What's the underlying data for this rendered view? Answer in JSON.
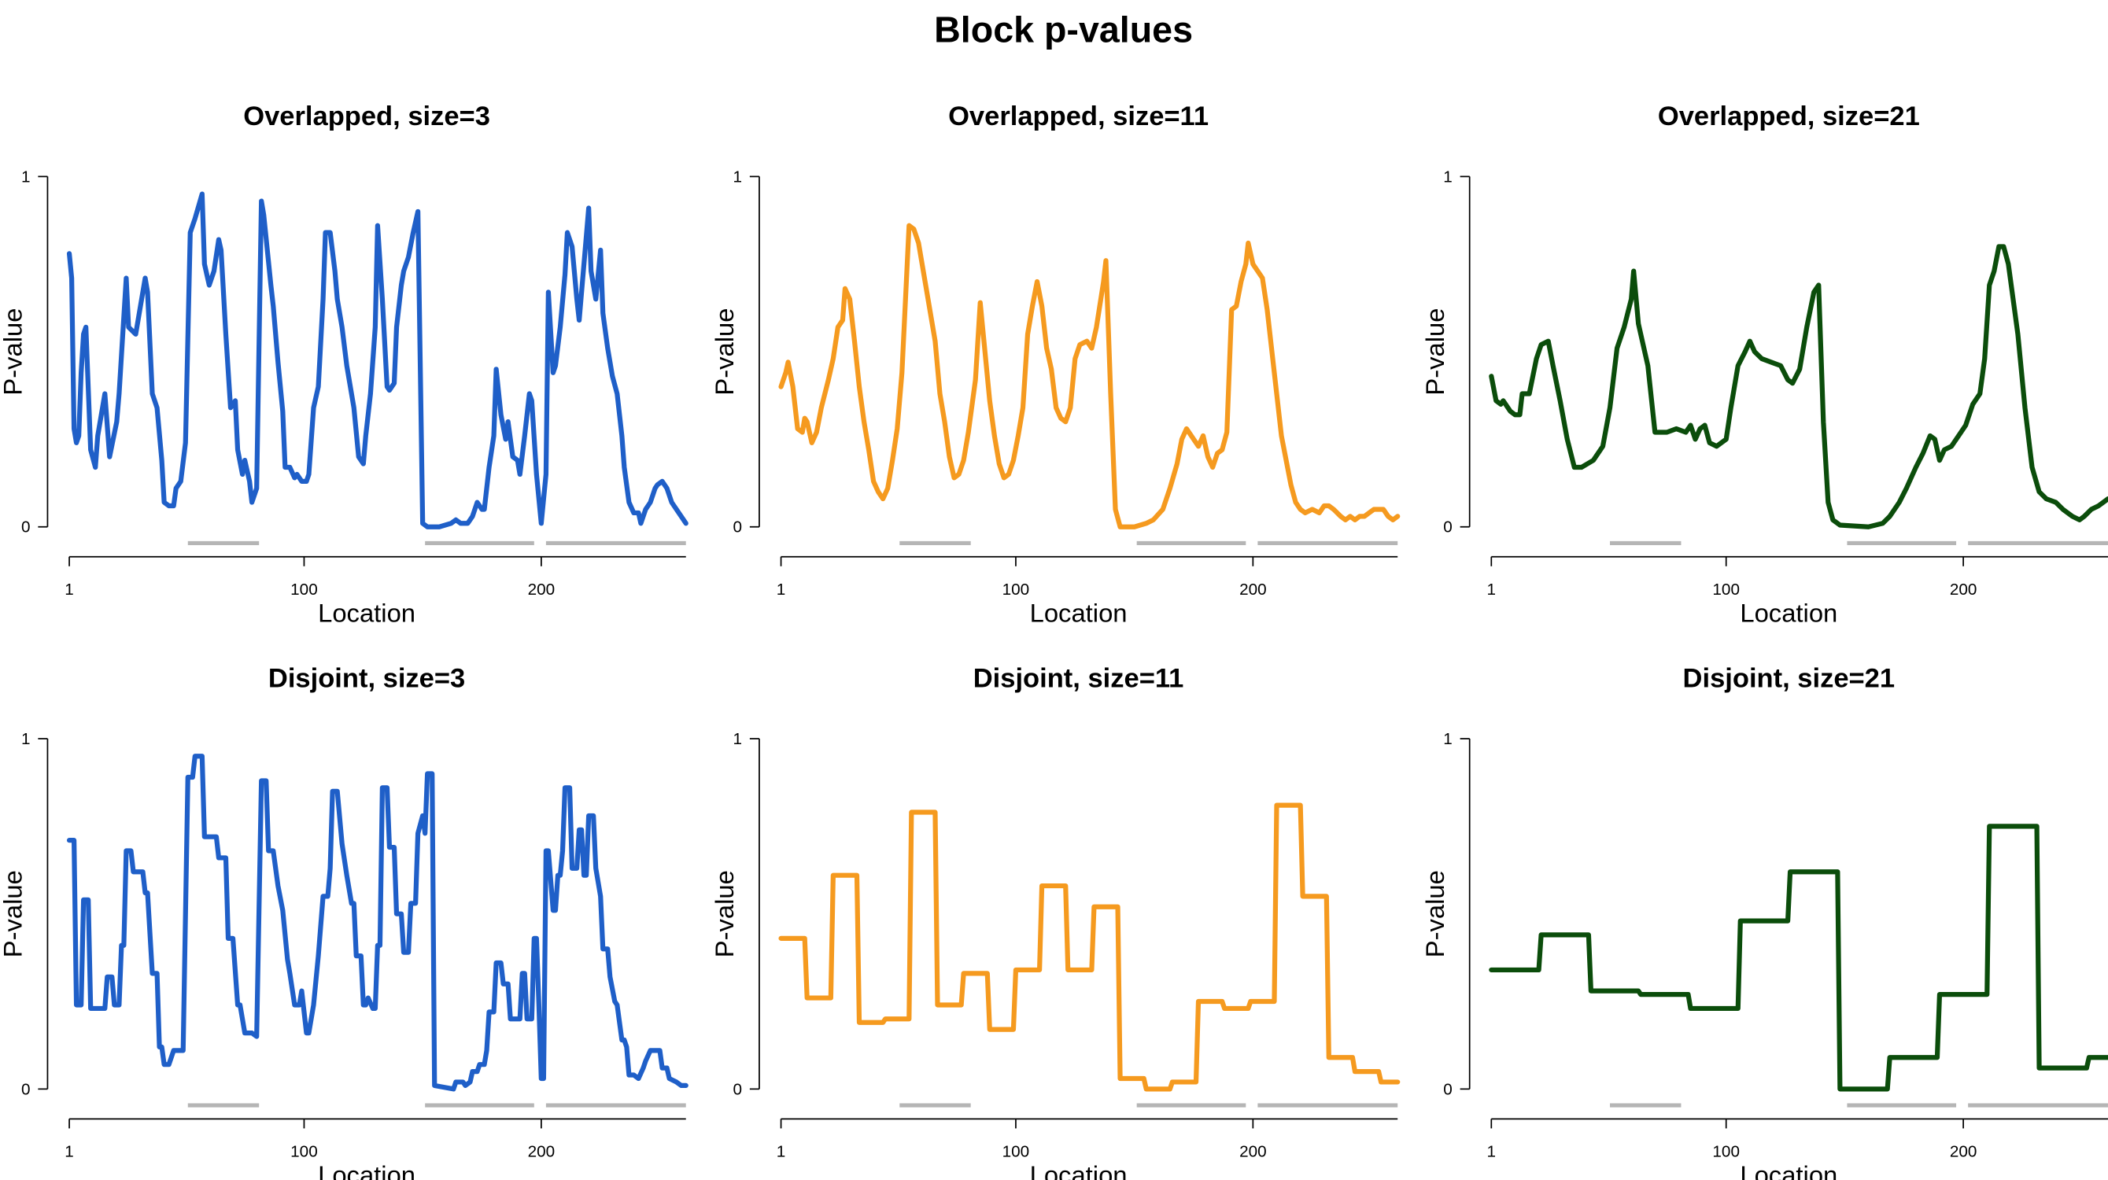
{
  "title": "Block p-values",
  "chart_data": [
    {
      "type": "line",
      "title": "Overlapped, size=3",
      "xlabel": "Location",
      "ylabel": "P-value",
      "color": "#1f5fc8",
      "xlim": [
        1,
        261
      ],
      "ylim": [
        0,
        1
      ],
      "xticks": [
        1,
        100,
        200
      ],
      "yticks": [
        0,
        1
      ],
      "regions": [
        [
          51,
          81
        ],
        [
          151,
          197
        ],
        [
          202,
          261
        ]
      ],
      "region_color": "#b5b5b5",
      "x": [
        1,
        2,
        3,
        4,
        5,
        6,
        7,
        8,
        10,
        12,
        13,
        16,
        18,
        21,
        22,
        25,
        26,
        29,
        30,
        33,
        34,
        36,
        38,
        40,
        41,
        43,
        45,
        46,
        48,
        50,
        52,
        54,
        57,
        58,
        60,
        62,
        64,
        65,
        67,
        69,
        71,
        72,
        74,
        75,
        77,
        78,
        80,
        82,
        83,
        86,
        87,
        89,
        91,
        92,
        94,
        96,
        97,
        99,
        101,
        102,
        104,
        106,
        108,
        109,
        111,
        113,
        114,
        116,
        118,
        119,
        121,
        123,
        125,
        126,
        128,
        130,
        131,
        133,
        135,
        136,
        138,
        139,
        141,
        142,
        144,
        146,
        148,
        150,
        152,
        157,
        162,
        164,
        166,
        169,
        171,
        173,
        175,
        176,
        178,
        180,
        181,
        183,
        185,
        186,
        188,
        190,
        191,
        193,
        195,
        196,
        198,
        200,
        202,
        203,
        205,
        206,
        208,
        210,
        211,
        213,
        215,
        216,
        218,
        220,
        221,
        223,
        225,
        226,
        228,
        230,
        232,
        234,
        235,
        237,
        239,
        241,
        242,
        244,
        246,
        248,
        249,
        251,
        253,
        255,
        257,
        259,
        261
      ],
      "values": [
        0.78,
        0.71,
        0.28,
        0.24,
        0.26,
        0.44,
        0.55,
        0.57,
        0.22,
        0.17,
        0.26,
        0.38,
        0.2,
        0.3,
        0.38,
        0.71,
        0.57,
        0.55,
        0.59,
        0.71,
        0.67,
        0.38,
        0.34,
        0.19,
        0.07,
        0.06,
        0.06,
        0.11,
        0.13,
        0.24,
        0.84,
        0.88,
        0.95,
        0.75,
        0.69,
        0.73,
        0.82,
        0.79,
        0.55,
        0.34,
        0.36,
        0.22,
        0.15,
        0.19,
        0.13,
        0.07,
        0.11,
        0.93,
        0.89,
        0.69,
        0.63,
        0.47,
        0.33,
        0.17,
        0.17,
        0.14,
        0.15,
        0.13,
        0.13,
        0.15,
        0.34,
        0.4,
        0.65,
        0.84,
        0.84,
        0.73,
        0.65,
        0.57,
        0.46,
        0.42,
        0.34,
        0.2,
        0.18,
        0.26,
        0.38,
        0.57,
        0.86,
        0.65,
        0.4,
        0.39,
        0.41,
        0.57,
        0.69,
        0.73,
        0.77,
        0.84,
        0.9,
        0.01,
        0,
        0,
        0.01,
        0.02,
        0.01,
        0.01,
        0.03,
        0.07,
        0.05,
        0.05,
        0.17,
        0.26,
        0.45,
        0.32,
        0.25,
        0.3,
        0.2,
        0.19,
        0.15,
        0.26,
        0.38,
        0.36,
        0.15,
        0.01,
        0.15,
        0.67,
        0.44,
        0.46,
        0.57,
        0.72,
        0.84,
        0.8,
        0.65,
        0.59,
        0.75,
        0.91,
        0.73,
        0.65,
        0.79,
        0.61,
        0.51,
        0.43,
        0.38,
        0.26,
        0.17,
        0.07,
        0.04,
        0.04,
        0.01,
        0.05,
        0.07,
        0.11,
        0.12,
        0.13,
        0.11,
        0.07,
        0.05,
        0.03,
        0.01
      ]
    },
    {
      "type": "line",
      "title": "Overlapped, size=11",
      "xlabel": "Location",
      "ylabel": "P-value",
      "color": "#f59a1f",
      "xlim": [
        1,
        261
      ],
      "ylim": [
        0,
        1
      ],
      "xticks": [
        1,
        100,
        200
      ],
      "yticks": [
        0,
        1
      ],
      "regions": [
        [
          51,
          81
        ],
        [
          151,
          197
        ],
        [
          202,
          261
        ]
      ],
      "region_color": "#b5b5b5",
      "x": [
        1,
        3,
        4,
        6,
        8,
        10,
        11,
        12,
        14,
        16,
        18,
        21,
        23,
        25,
        27,
        28,
        30,
        32,
        34,
        36,
        38,
        40,
        42,
        44,
        46,
        48,
        50,
        52,
        55,
        57,
        59,
        62,
        64,
        66,
        68,
        70,
        72,
        74,
        76,
        78,
        80,
        83,
        85,
        87,
        89,
        91,
        93,
        95,
        97,
        99,
        101,
        103,
        105,
        107,
        109,
        111,
        113,
        115,
        117,
        119,
        121,
        123,
        125,
        127,
        130,
        132,
        134,
        137,
        138,
        140,
        142,
        144,
        150,
        155,
        158,
        162,
        165,
        168,
        170,
        172,
        175,
        177,
        179,
        181,
        183,
        185,
        187,
        189,
        191,
        193,
        195,
        197,
        198,
        200,
        202,
        204,
        206,
        208,
        210,
        212,
        214,
        216,
        218,
        220,
        222,
        225,
        228,
        230,
        232,
        234,
        237,
        239,
        241,
        243,
        245,
        247,
        249,
        251,
        253,
        255,
        257,
        259,
        261
      ],
      "values": [
        0.4,
        0.44,
        0.47,
        0.4,
        0.28,
        0.27,
        0.31,
        0.3,
        0.24,
        0.27,
        0.34,
        0.42,
        0.48,
        0.57,
        0.59,
        0.68,
        0.65,
        0.53,
        0.4,
        0.3,
        0.22,
        0.13,
        0.1,
        0.08,
        0.11,
        0.19,
        0.28,
        0.44,
        0.86,
        0.85,
        0.81,
        0.69,
        0.61,
        0.53,
        0.38,
        0.3,
        0.2,
        0.14,
        0.15,
        0.19,
        0.27,
        0.42,
        0.64,
        0.5,
        0.36,
        0.26,
        0.18,
        0.14,
        0.15,
        0.19,
        0.26,
        0.34,
        0.55,
        0.63,
        0.7,
        0.63,
        0.51,
        0.45,
        0.34,
        0.31,
        0.3,
        0.34,
        0.48,
        0.52,
        0.53,
        0.51,
        0.57,
        0.7,
        0.76,
        0.38,
        0.05,
        0,
        0,
        0.01,
        0.02,
        0.05,
        0.11,
        0.18,
        0.25,
        0.28,
        0.25,
        0.23,
        0.26,
        0.2,
        0.17,
        0.21,
        0.22,
        0.27,
        0.62,
        0.63,
        0.7,
        0.75,
        0.81,
        0.75,
        0.73,
        0.71,
        0.62,
        0.5,
        0.38,
        0.26,
        0.19,
        0.12,
        0.07,
        0.05,
        0.04,
        0.05,
        0.04,
        0.06,
        0.06,
        0.05,
        0.03,
        0.02,
        0.03,
        0.02,
        0.03,
        0.03,
        0.04,
        0.05,
        0.05,
        0.05,
        0.03,
        0.02,
        0.03
      ]
    },
    {
      "type": "line",
      "title": "Overlapped, size=21",
      "xlabel": "Location",
      "ylabel": "P-value",
      "color": "#0b4d0b",
      "xlim": [
        1,
        261
      ],
      "ylim": [
        0,
        1
      ],
      "xticks": [
        1,
        100,
        200
      ],
      "yticks": [
        0,
        1
      ],
      "regions": [
        [
          51,
          81
        ],
        [
          151,
          197
        ],
        [
          202,
          261
        ]
      ],
      "region_color": "#b5b5b5",
      "x": [
        1,
        3,
        5,
        6,
        9,
        11,
        13,
        14,
        17,
        20,
        22,
        25,
        27,
        30,
        33,
        36,
        39,
        44,
        48,
        51,
        54,
        57,
        60,
        61,
        63,
        65,
        67,
        70,
        75,
        79,
        83,
        85,
        87,
        89,
        91,
        93,
        96,
        100,
        102,
        105,
        108,
        110,
        112,
        115,
        119,
        123,
        126,
        128,
        131,
        134,
        137,
        139,
        141,
        143,
        145,
        148,
        160,
        166,
        169,
        173,
        176,
        180,
        183,
        186,
        188,
        190,
        192,
        195,
        198,
        201,
        204,
        207,
        209,
        211,
        213,
        215,
        217,
        219,
        221,
        223,
        226,
        229,
        232,
        235,
        239,
        242,
        246,
        249,
        251,
        254,
        257,
        261
      ],
      "values": [
        0.43,
        0.36,
        0.35,
        0.36,
        0.33,
        0.32,
        0.32,
        0.38,
        0.38,
        0.48,
        0.52,
        0.53,
        0.46,
        0.36,
        0.25,
        0.17,
        0.17,
        0.19,
        0.23,
        0.34,
        0.51,
        0.57,
        0.65,
        0.73,
        0.58,
        0.52,
        0.46,
        0.27,
        0.27,
        0.28,
        0.27,
        0.29,
        0.25,
        0.28,
        0.29,
        0.24,
        0.23,
        0.25,
        0.34,
        0.46,
        0.5,
        0.53,
        0.5,
        0.48,
        0.47,
        0.46,
        0.42,
        0.41,
        0.45,
        0.57,
        0.67,
        0.69,
        0.3,
        0.07,
        0.02,
        0.005,
        0,
        0.01,
        0.03,
        0.07,
        0.11,
        0.17,
        0.21,
        0.26,
        0.25,
        0.19,
        0.22,
        0.23,
        0.26,
        0.29,
        0.35,
        0.38,
        0.48,
        0.69,
        0.73,
        0.8,
        0.8,
        0.75,
        0.65,
        0.55,
        0.34,
        0.17,
        0.1,
        0.08,
        0.07,
        0.05,
        0.03,
        0.02,
        0.03,
        0.05,
        0.06,
        0.08
      ]
    },
    {
      "type": "line",
      "title": "Disjoint, size=3",
      "xlabel": "Location",
      "ylabel": "P-value",
      "color": "#1f5fc8",
      "xlim": [
        1,
        261
      ],
      "ylim": [
        0,
        1
      ],
      "xticks": [
        1,
        100,
        200
      ],
      "yticks": [
        0,
        1
      ],
      "regions": [
        [
          51,
          81
        ],
        [
          151,
          197
        ],
        [
          202,
          261
        ]
      ],
      "region_color": "#b5b5b5",
      "x": [
        1,
        3,
        4,
        6,
        7,
        9,
        10,
        16,
        17,
        19,
        20,
        22,
        23,
        24,
        25,
        27,
        28,
        32,
        33,
        34,
        36,
        38,
        39,
        40,
        41,
        43,
        45,
        49,
        51,
        53,
        54,
        57,
        58,
        63,
        64,
        67,
        68,
        70,
        72,
        73,
        75,
        78,
        80,
        82,
        84,
        85,
        87,
        89,
        91,
        93,
        94,
        96,
        98,
        99,
        101,
        102,
        104,
        106,
        108,
        110,
        111,
        112,
        114,
        116,
        118,
        120,
        121,
        122,
        124,
        125,
        126,
        127,
        129,
        130,
        131,
        132,
        133,
        135,
        136,
        138,
        139,
        141,
        142,
        144,
        145,
        147,
        148,
        150,
        151,
        152,
        154,
        155,
        163,
        164,
        167,
        168,
        170,
        171,
        173,
        174,
        176,
        177,
        178,
        180,
        181,
        183,
        184,
        186,
        187,
        191,
        192,
        193,
        194,
        196,
        197,
        198,
        199,
        200,
        201,
        202,
        203,
        205,
        206,
        207,
        208,
        209,
        210,
        212,
        213,
        215,
        216,
        217,
        218,
        219,
        220,
        222,
        223,
        225,
        226,
        228,
        229,
        231,
        232,
        234,
        235,
        236,
        237,
        239,
        241,
        243,
        244,
        246,
        248,
        250,
        251,
        253,
        254,
        257,
        259,
        261
      ],
      "values": [
        0.71,
        0.71,
        0.24,
        0.24,
        0.54,
        0.54,
        0.23,
        0.23,
        0.32,
        0.32,
        0.24,
        0.24,
        0.41,
        0.41,
        0.68,
        0.68,
        0.62,
        0.62,
        0.56,
        0.56,
        0.33,
        0.33,
        0.12,
        0.12,
        0.07,
        0.07,
        0.11,
        0.11,
        0.89,
        0.89,
        0.95,
        0.95,
        0.72,
        0.72,
        0.66,
        0.66,
        0.43,
        0.43,
        0.24,
        0.24,
        0.16,
        0.16,
        0.15,
        0.88,
        0.88,
        0.68,
        0.68,
        0.58,
        0.51,
        0.37,
        0.33,
        0.24,
        0.24,
        0.28,
        0.16,
        0.16,
        0.24,
        0.38,
        0.55,
        0.55,
        0.63,
        0.85,
        0.85,
        0.7,
        0.61,
        0.53,
        0.53,
        0.38,
        0.38,
        0.24,
        0.24,
        0.26,
        0.23,
        0.23,
        0.41,
        0.41,
        0.86,
        0.86,
        0.69,
        0.69,
        0.5,
        0.5,
        0.39,
        0.39,
        0.53,
        0.53,
        0.73,
        0.78,
        0.73,
        0.9,
        0.9,
        0.01,
        0,
        0.02,
        0.02,
        0.01,
        0.02,
        0.05,
        0.05,
        0.07,
        0.07,
        0.11,
        0.22,
        0.22,
        0.36,
        0.36,
        0.3,
        0.3,
        0.2,
        0.2,
        0.33,
        0.33,
        0.2,
        0.2,
        0.43,
        0.43,
        0.24,
        0.03,
        0.03,
        0.68,
        0.68,
        0.51,
        0.51,
        0.61,
        0.61,
        0.68,
        0.86,
        0.86,
        0.63,
        0.63,
        0.74,
        0.74,
        0.61,
        0.61,
        0.78,
        0.78,
        0.63,
        0.55,
        0.4,
        0.4,
        0.32,
        0.25,
        0.24,
        0.14,
        0.14,
        0.12,
        0.04,
        0.04,
        0.03,
        0.06,
        0.08,
        0.11,
        0.11,
        0.11,
        0.06,
        0.06,
        0.03,
        0.02,
        0.01,
        0.01
      ]
    },
    {
      "type": "line",
      "title": "Disjoint, size=11",
      "xlabel": "Location",
      "ylabel": "P-value",
      "color": "#f59a1f",
      "xlim": [
        1,
        261
      ],
      "ylim": [
        0,
        1
      ],
      "xticks": [
        1,
        100,
        200
      ],
      "yticks": [
        0,
        1
      ],
      "regions": [
        [
          51,
          81
        ],
        [
          151,
          197
        ],
        [
          202,
          261
        ]
      ],
      "region_color": "#b5b5b5",
      "x": [
        1,
        11,
        12,
        22,
        23,
        33,
        34,
        44,
        45,
        55,
        56,
        66,
        67,
        77,
        78,
        88,
        89,
        99,
        100,
        110,
        111,
        121,
        122,
        132,
        133,
        143,
        144,
        154,
        155,
        165,
        166,
        176,
        177,
        187,
        188,
        198,
        199,
        209,
        210,
        220,
        221,
        231,
        232,
        242,
        243,
        253,
        254,
        261
      ],
      "values": [
        0.43,
        0.43,
        0.26,
        0.26,
        0.61,
        0.61,
        0.19,
        0.19,
        0.2,
        0.2,
        0.79,
        0.79,
        0.24,
        0.24,
        0.33,
        0.33,
        0.17,
        0.17,
        0.34,
        0.34,
        0.58,
        0.58,
        0.34,
        0.34,
        0.52,
        0.52,
        0.03,
        0.03,
        0,
        0,
        0.02,
        0.02,
        0.25,
        0.25,
        0.23,
        0.23,
        0.25,
        0.25,
        0.81,
        0.81,
        0.55,
        0.55,
        0.09,
        0.09,
        0.05,
        0.05,
        0.02,
        0.02
      ]
    },
    {
      "type": "line",
      "title": "Disjoint, size=21",
      "xlabel": "Location",
      "ylabel": "P-value",
      "color": "#0b4d0b",
      "xlim": [
        1,
        261
      ],
      "ylim": [
        0,
        1
      ],
      "xticks": [
        1,
        100,
        200
      ],
      "yticks": [
        0,
        1
      ],
      "regions": [
        [
          51,
          81
        ],
        [
          151,
          197
        ],
        [
          202,
          261
        ]
      ],
      "region_color": "#b5b5b5",
      "x": [
        1,
        21,
        22,
        42,
        43,
        63,
        64,
        84,
        85,
        105,
        106,
        126,
        127,
        147,
        148,
        168,
        169,
        189,
        190,
        210,
        211,
        231,
        232,
        252,
        253,
        261
      ],
      "values": [
        0.34,
        0.34,
        0.44,
        0.44,
        0.28,
        0.28,
        0.27,
        0.27,
        0.23,
        0.23,
        0.48,
        0.48,
        0.62,
        0.62,
        0,
        0,
        0.09,
        0.09,
        0.27,
        0.27,
        0.75,
        0.75,
        0.06,
        0.06,
        0.09,
        0.09
      ]
    }
  ]
}
